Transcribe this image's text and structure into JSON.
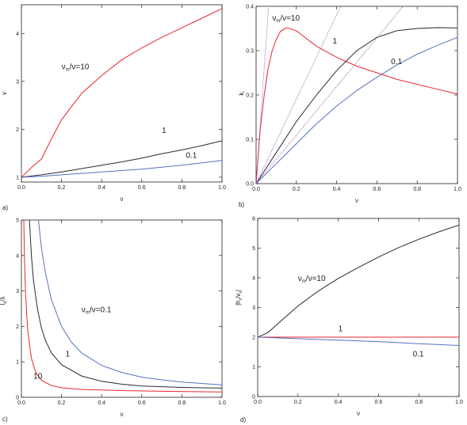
{
  "colors": {
    "red": "#e8262d",
    "black": "#2a2a2a",
    "blue": "#5570c0",
    "purple": "#8e4fb0"
  },
  "chart_data": [
    {
      "panel": "a)",
      "type": "line",
      "xlabel": "ν",
      "ylabel": "v",
      "xlim": [
        0,
        1.0
      ],
      "ylim": [
        0.9,
        4.6
      ],
      "xticks": [
        "0.0",
        "0.2",
        "0.4",
        "0.6",
        "0.8",
        "1.0"
      ],
      "yticks": [
        "1",
        "2",
        "3",
        "4"
      ],
      "series": [
        {
          "color": "red",
          "x": [
            0,
            0.05,
            0.1,
            0.15,
            0.2,
            0.3,
            0.4,
            0.5,
            0.6,
            0.7,
            0.8,
            0.9,
            1.0
          ],
          "y": [
            1.0,
            1.2,
            1.38,
            1.8,
            2.2,
            2.75,
            3.12,
            3.45,
            3.7,
            3.92,
            4.12,
            4.32,
            4.52
          ]
        },
        {
          "color": "black",
          "x": [
            0,
            0.1,
            0.2,
            0.3,
            0.4,
            0.5,
            0.6,
            0.7,
            0.8,
            0.9,
            1.0
          ],
          "y": [
            1.0,
            1.05,
            1.11,
            1.18,
            1.25,
            1.32,
            1.4,
            1.49,
            1.57,
            1.66,
            1.76
          ]
        },
        {
          "color": "blue",
          "x": [
            0,
            0.1,
            0.2,
            0.3,
            0.4,
            0.5,
            0.6,
            0.7,
            0.8,
            0.9,
            1.0
          ],
          "y": [
            1.0,
            1.02,
            1.05,
            1.08,
            1.11,
            1.14,
            1.17,
            1.21,
            1.25,
            1.3,
            1.35
          ]
        }
      ],
      "annotations": [
        {
          "text": "ν",
          "sub": "m",
          "rest": "/ν=10",
          "x": 0.2,
          "y": 3.25
        },
        {
          "text": "1",
          "sub": "",
          "rest": "",
          "x": 0.7,
          "y": 1.92
        },
        {
          "text": "0.1",
          "sub": "",
          "rest": "",
          "x": 0.82,
          "y": 1.4
        }
      ]
    },
    {
      "panel": "b)",
      "type": "line",
      "xlabel": "ν",
      "ylabel": "k",
      "ylabel_sub": "i",
      "xlim": [
        0,
        1.0
      ],
      "ylim": [
        0,
        0.4
      ],
      "xticks": [
        "0.0",
        "0.2",
        "0.4",
        "0.6",
        "0.8",
        "1.0"
      ],
      "yticks": [
        "0.0",
        "0.1",
        "0.2",
        "0.3",
        "0.4"
      ],
      "series": [
        {
          "color": "red",
          "x": [
            0,
            0.02,
            0.04,
            0.06,
            0.08,
            0.1,
            0.12,
            0.15,
            0.2,
            0.3,
            0.4,
            0.5,
            0.6,
            0.7,
            0.8,
            0.9,
            1.0
          ],
          "y": [
            0,
            0.12,
            0.2,
            0.26,
            0.3,
            0.325,
            0.343,
            0.352,
            0.345,
            0.31,
            0.285,
            0.265,
            0.25,
            0.235,
            0.224,
            0.213,
            0.202
          ]
        },
        {
          "color": "black",
          "x": [
            0,
            0.1,
            0.2,
            0.3,
            0.4,
            0.5,
            0.6,
            0.7,
            0.8,
            0.9,
            1.0
          ],
          "y": [
            0,
            0.07,
            0.14,
            0.2,
            0.255,
            0.3,
            0.33,
            0.345,
            0.35,
            0.352,
            0.351
          ]
        },
        {
          "color": "blue",
          "x": [
            0,
            0.1,
            0.2,
            0.3,
            0.4,
            0.5,
            0.6,
            0.7,
            0.8,
            0.9,
            1.0
          ],
          "y": [
            0,
            0.045,
            0.09,
            0.135,
            0.175,
            0.21,
            0.24,
            0.268,
            0.292,
            0.312,
            0.33
          ]
        },
        {
          "color": "purple",
          "dotted": true,
          "x": [
            0,
            0.062
          ],
          "y": [
            0,
            0.4
          ]
        },
        {
          "color": "purple",
          "dotted": true,
          "x": [
            0,
            0.42
          ],
          "y": [
            0,
            0.4
          ]
        },
        {
          "color": "purple",
          "dotted": true,
          "x": [
            0,
            0.73
          ],
          "y": [
            0,
            0.4
          ]
        }
      ],
      "annotations": [
        {
          "text": "ν",
          "sub": "m",
          "rest": "/ν=10",
          "x": 0.08,
          "y": 0.368
        },
        {
          "text": "1",
          "sub": "",
          "rest": "",
          "x": 0.38,
          "y": 0.316
        },
        {
          "text": "0.1",
          "sub": "",
          "rest": "",
          "x": 0.67,
          "y": 0.27
        }
      ]
    },
    {
      "panel": "c)",
      "type": "line",
      "xlabel": "ν",
      "ylabel": "l",
      "ylabel_sub": "o",
      "ylabel_rest": "/λ",
      "xlim": [
        0,
        1.0
      ],
      "ylim": [
        0,
        5
      ],
      "xticks": [
        "0.0",
        "0.2",
        "0.4",
        "0.6",
        "0.8",
        "1.0"
      ],
      "yticks": [
        "0",
        "1",
        "2",
        "3",
        "4",
        "5"
      ],
      "series": [
        {
          "color": "red",
          "x": [
            0.012,
            0.015,
            0.02,
            0.03,
            0.04,
            0.05,
            0.07,
            0.1,
            0.15,
            0.2,
            0.3,
            0.5,
            0.7,
            1.0
          ],
          "y": [
            5.0,
            4.0,
            3.0,
            2.0,
            1.5,
            1.1,
            0.72,
            0.48,
            0.33,
            0.27,
            0.22,
            0.19,
            0.17,
            0.15
          ]
        },
        {
          "color": "black",
          "x": [
            0.04,
            0.05,
            0.06,
            0.08,
            0.1,
            0.12,
            0.15,
            0.2,
            0.3,
            0.4,
            0.5,
            0.6,
            0.8,
            1.0
          ],
          "y": [
            5.0,
            4.0,
            3.3,
            2.5,
            1.95,
            1.6,
            1.25,
            0.92,
            0.6,
            0.45,
            0.37,
            0.32,
            0.28,
            0.26
          ]
        },
        {
          "color": "blue",
          "x": [
            0.085,
            0.1,
            0.12,
            0.15,
            0.2,
            0.25,
            0.3,
            0.4,
            0.5,
            0.6,
            0.7,
            0.8,
            1.0
          ],
          "y": [
            5.0,
            4.2,
            3.5,
            2.75,
            2.0,
            1.55,
            1.25,
            0.9,
            0.7,
            0.57,
            0.49,
            0.43,
            0.35
          ]
        }
      ],
      "annotations": [
        {
          "text": "ν",
          "sub": "m",
          "rest": "/ν=0.1",
          "x": 0.3,
          "y": 2.4
        },
        {
          "text": "1",
          "sub": "",
          "rest": "",
          "x": 0.22,
          "y": 1.15
        },
        {
          "text": "10",
          "sub": "",
          "rest": "",
          "x": 0.06,
          "y": 0.53
        }
      ]
    },
    {
      "panel": "d)",
      "type": "line",
      "xlabel": "ν",
      "ylabel": "|h",
      "ylabel_sub": "z",
      "ylabel_rest": "/v",
      "ylabel_sub2": "z",
      "ylabel_end": "|",
      "xlim": [
        0,
        1.0
      ],
      "ylim": [
        0,
        6
      ],
      "xticks": [
        "0.0",
        "0.2",
        "0.4",
        "0.6",
        "0.8",
        "1.0"
      ],
      "yticks": [
        "0",
        "1",
        "2",
        "3",
        "4",
        "5",
        "6"
      ],
      "series": [
        {
          "color": "black",
          "x": [
            0,
            0.05,
            0.1,
            0.15,
            0.2,
            0.3,
            0.4,
            0.5,
            0.6,
            0.7,
            0.8,
            0.9,
            1.0
          ],
          "y": [
            2.0,
            2.15,
            2.45,
            2.75,
            3.05,
            3.55,
            3.98,
            4.35,
            4.7,
            5.02,
            5.3,
            5.55,
            5.78
          ]
        },
        {
          "color": "red",
          "x": [
            0,
            1.0
          ],
          "y": [
            2.0,
            2.0
          ]
        },
        {
          "color": "blue",
          "x": [
            0,
            0.2,
            0.4,
            0.6,
            0.8,
            1.0
          ],
          "y": [
            2.0,
            1.95,
            1.9,
            1.85,
            1.78,
            1.72
          ]
        }
      ],
      "annotations": [
        {
          "text": "ν",
          "sub": "m",
          "rest": "/ν=10",
          "x": 0.2,
          "y": 3.9
        },
        {
          "text": "1",
          "sub": "",
          "rest": "",
          "x": 0.4,
          "y": 2.2
        },
        {
          "text": "0.1",
          "sub": "",
          "rest": "",
          "x": 0.77,
          "y": 1.35
        }
      ]
    }
  ]
}
